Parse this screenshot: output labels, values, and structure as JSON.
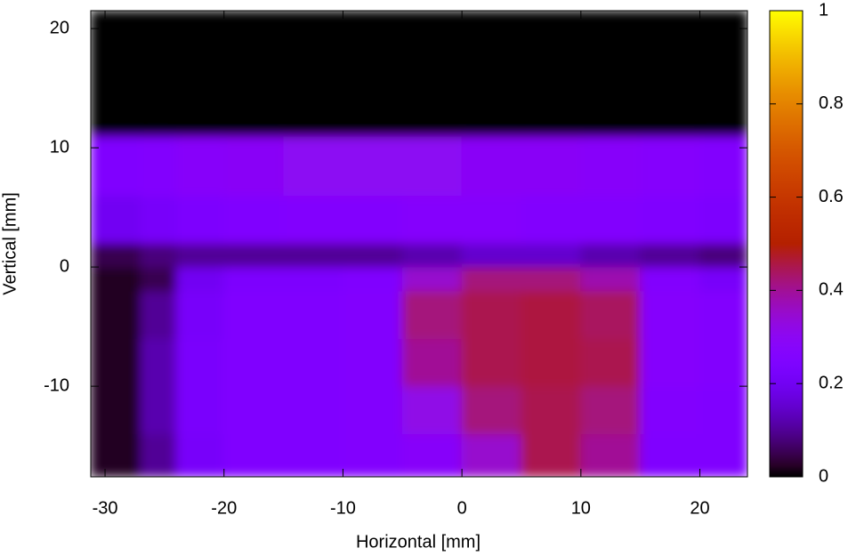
{
  "chart_data": {
    "type": "heatmap",
    "xlabel": "Horizontal [mm]",
    "ylabel": "Vertical [mm]",
    "x_edges": [
      -31.2,
      -27,
      -24,
      -20,
      -15,
      -10,
      -5,
      0,
      5,
      10,
      15,
      20,
      24
    ],
    "y_edges": [
      -17.6,
      -14,
      -10,
      -6,
      -2,
      0,
      2,
      6,
      11,
      21.5
    ],
    "z": [
      [
        0.02,
        0.1,
        0.22,
        0.25,
        0.25,
        0.26,
        0.28,
        0.35,
        0.45,
        0.4,
        0.25,
        0.25
      ],
      [
        0.02,
        0.12,
        0.23,
        0.25,
        0.25,
        0.26,
        0.32,
        0.42,
        0.45,
        0.42,
        0.26,
        0.25
      ],
      [
        0.02,
        0.12,
        0.23,
        0.25,
        0.25,
        0.26,
        0.4,
        0.45,
        0.46,
        0.45,
        0.27,
        0.26
      ],
      [
        0.02,
        0.1,
        0.22,
        0.25,
        0.25,
        0.26,
        0.42,
        0.45,
        0.46,
        0.44,
        0.27,
        0.26
      ],
      [
        0.02,
        0.05,
        0.2,
        0.24,
        0.24,
        0.25,
        0.35,
        0.42,
        0.42,
        0.38,
        0.26,
        0.22
      ],
      [
        0.05,
        0.08,
        0.1,
        0.1,
        0.1,
        0.1,
        0.12,
        0.15,
        0.15,
        0.12,
        0.1,
        0.08
      ],
      [
        0.2,
        0.22,
        0.24,
        0.25,
        0.26,
        0.26,
        0.27,
        0.27,
        0.26,
        0.26,
        0.25,
        0.24
      ],
      [
        0.25,
        0.26,
        0.28,
        0.29,
        0.3,
        0.3,
        0.3,
        0.29,
        0.29,
        0.28,
        0.27,
        0.26
      ],
      [
        0,
        0,
        0,
        0,
        0,
        0,
        0,
        0,
        0,
        0,
        0,
        0
      ]
    ],
    "xlim": [
      -31.2,
      24
    ],
    "ylim": [
      -17.6,
      21.5
    ],
    "xticks": [
      -30,
      -20,
      -10,
      0,
      10,
      20
    ],
    "yticks": [
      -10,
      0,
      10,
      20
    ],
    "cblim": [
      0,
      1
    ],
    "cbticks": [
      0,
      0.2,
      0.4,
      0.6,
      0.8,
      1
    ]
  }
}
